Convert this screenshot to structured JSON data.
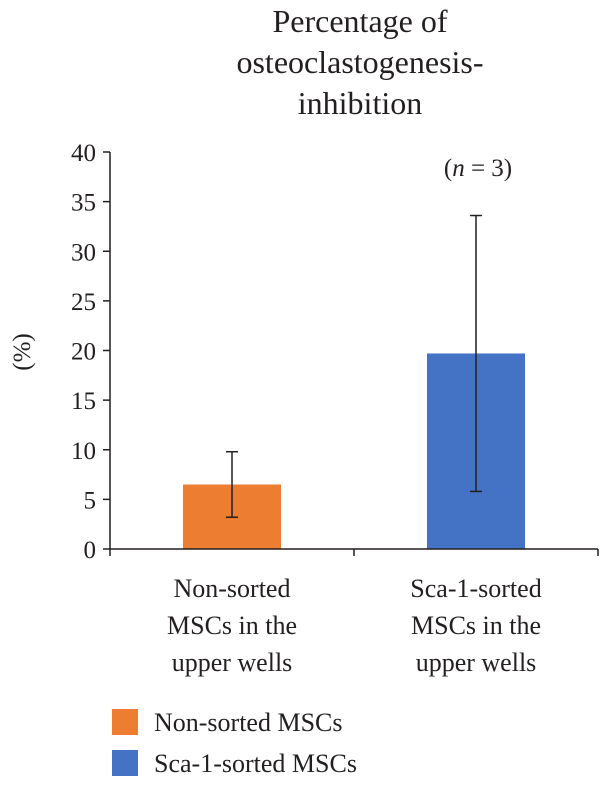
{
  "chart_data": {
    "type": "bar",
    "title": [
      "Percentage of",
      "osteoclastogenesis-",
      "inhibition"
    ],
    "ylabel": "(%)",
    "xlabel": "",
    "ylim": [
      0,
      40
    ],
    "yticks": [
      0,
      5,
      10,
      15,
      20,
      25,
      30,
      35,
      40
    ],
    "ytick_labels": [
      "0",
      "5",
      "10",
      "15",
      "20",
      "25",
      "30",
      "35",
      "40"
    ],
    "categories": [
      [
        "Non-sorted",
        "MSCs in the",
        "upper wells"
      ],
      [
        "Sca-1-sorted",
        "MSCs in the",
        "upper wells"
      ]
    ],
    "series": [
      {
        "name": "Non-sorted MSCs",
        "color": "#ed7d31",
        "value": 6.5,
        "error_low": 3.2,
        "error_high": 9.8
      },
      {
        "name": "Sca-1-sorted MSCs",
        "color": "#4472c4",
        "value": 19.7,
        "error_low": 5.8,
        "error_high": 33.6
      }
    ],
    "annotation_prefix": "(",
    "annotation_var": "n",
    "annotation_suffix": " = 3)",
    "grid": false,
    "legend_position": "bottom-left"
  }
}
